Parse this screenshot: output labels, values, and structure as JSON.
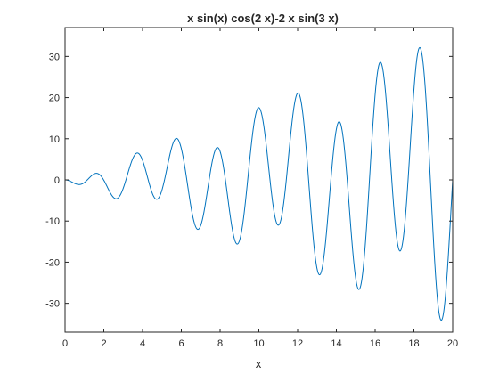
{
  "chart_data": {
    "type": "line",
    "title": "x sin(x) cos(2 x)-2 x sin(3 x)",
    "xlabel": "x",
    "ylabel": "",
    "xlim": [
      0,
      20
    ],
    "ylim": [
      -37,
      37
    ],
    "xticks": [
      0,
      2,
      4,
      6,
      8,
      10,
      12,
      14,
      16,
      18,
      20
    ],
    "yticks": [
      -30,
      -20,
      -10,
      0,
      10,
      20,
      30
    ],
    "grid": false,
    "legend": "none",
    "series": [
      {
        "function": "x*sin(x)*cos(2*x) - 2*x*sin(3*x)",
        "x_range": [
          0,
          20
        ],
        "color": "#0072BD"
      }
    ]
  }
}
